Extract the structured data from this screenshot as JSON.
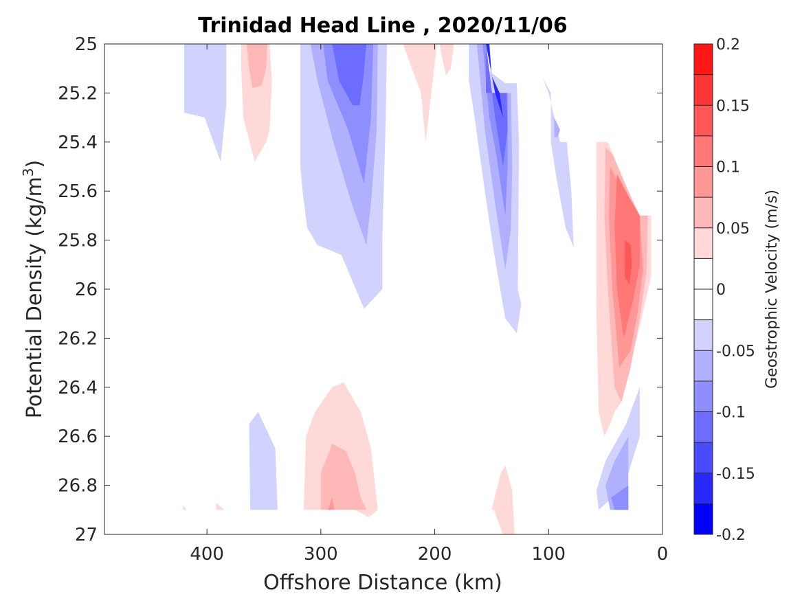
{
  "chart_data": {
    "type": "contour",
    "title": "Trinidad Head Line , 2020/11/06",
    "xlabel": "Offshore Distance (km)",
    "ylabel_main": "Potential Density (kg/m",
    "ylabel_sup": "3",
    "ylabel_close": ")",
    "colorbar_label": "Geostrophic Velocity (m/s)",
    "xlim": [
      490,
      0
    ],
    "x_reversed": true,
    "ylim": [
      25,
      27
    ],
    "y_reversed": true,
    "x_ticks": [
      400,
      300,
      200,
      100,
      0
    ],
    "x_tick_labels": [
      "400",
      "300",
      "200",
      "100",
      "0"
    ],
    "y_ticks": [
      25,
      25.2,
      25.4,
      25.6,
      25.8,
      26,
      26.2,
      26.4,
      26.6,
      26.8,
      27
    ],
    "y_tick_labels": [
      "25",
      "25.2",
      "25.4",
      "25.6",
      "25.8",
      "26",
      "26.2",
      "26.4",
      "26.6",
      "26.8",
      "27"
    ],
    "colorbar": {
      "range": [
        -0.2,
        0.2
      ],
      "ticks": [
        0.2,
        0.15,
        0.1,
        0.05,
        0,
        -0.05,
        -0.1,
        -0.15,
        -0.2
      ],
      "tick_labels": [
        "0.2",
        "0.15",
        "0.1",
        "0.05",
        "0",
        "-0.05",
        "-0.1",
        "-0.15",
        "-0.2"
      ],
      "levels": [
        -0.2,
        -0.175,
        -0.15,
        -0.125,
        -0.1,
        -0.075,
        -0.05,
        -0.025,
        0,
        0.025,
        0.05,
        0.075,
        0.1,
        0.125,
        0.15,
        0.175,
        0.2
      ],
      "colors": [
        "#0000ff",
        "#2828ff",
        "#4a4aff",
        "#6c6cff",
        "#8e8eff",
        "#b0b0ff",
        "#d2d2ff",
        "#ffffff",
        "#ffffff",
        "#ffd8d8",
        "#ffb8b8",
        "#ff9797",
        "#ff7777",
        "#ff5757",
        "#ff3636",
        "#ff1616"
      ]
    },
    "regions": [
      {
        "name": "neg-band-420-outer",
        "color": "#d2d2ff",
        "points": [
          [
            420,
            25
          ],
          [
            383,
            25
          ],
          [
            383,
            25.25
          ],
          [
            388,
            25.48
          ],
          [
            402,
            25.3
          ],
          [
            420,
            25.28
          ]
        ]
      },
      {
        "name": "pos-band-355-outer",
        "color": "#ffd8d8",
        "points": [
          [
            370,
            25
          ],
          [
            345,
            25
          ],
          [
            343,
            25.15
          ],
          [
            345,
            25.35
          ],
          [
            348,
            25.4
          ],
          [
            358,
            25.48
          ],
          [
            368,
            25.3
          ],
          [
            370,
            25.1
          ]
        ]
      },
      {
        "name": "pos-band-355-inner",
        "color": "#ffb8b8",
        "points": [
          [
            365,
            25
          ],
          [
            347,
            25
          ],
          [
            348,
            25.1
          ],
          [
            352,
            25.17
          ],
          [
            360,
            25.18
          ],
          [
            363,
            25.1
          ]
        ]
      },
      {
        "name": "neg-band-300-1",
        "color": "#d2d2ff",
        "points": [
          [
            318,
            25
          ],
          [
            242,
            25
          ],
          [
            243,
            25.3
          ],
          [
            246,
            25.8
          ],
          [
            246,
            26.0
          ],
          [
            252,
            26.03
          ],
          [
            262,
            26.08
          ],
          [
            282,
            25.86
          ],
          [
            303,
            25.82
          ],
          [
            312,
            25.75
          ],
          [
            316,
            25.6
          ],
          [
            318,
            25.5
          ]
        ]
      },
      {
        "name": "neg-band-300-2",
        "color": "#b0b0ff",
        "points": [
          [
            309,
            25
          ],
          [
            250,
            25
          ],
          [
            251,
            25.35
          ],
          [
            256,
            25.65
          ],
          [
            260,
            25.82
          ],
          [
            273,
            25.65
          ],
          [
            289,
            25.4
          ],
          [
            303,
            25.15
          ]
        ]
      },
      {
        "name": "neg-band-300-3",
        "color": "#8e8eff",
        "points": [
          [
            298,
            25
          ],
          [
            254,
            25
          ],
          [
            256,
            25.3
          ],
          [
            262,
            25.57
          ],
          [
            276,
            25.35
          ],
          [
            294,
            25.15
          ]
        ]
      },
      {
        "name": "neg-band-300-4",
        "color": "#6c6cff",
        "points": [
          [
            290,
            25
          ],
          [
            260,
            25
          ],
          [
            263,
            25.15
          ],
          [
            266,
            25.25
          ],
          [
            272,
            25.25
          ],
          [
            284,
            25.15
          ]
        ]
      },
      {
        "name": "pos-band-210",
        "color": "#ffd8d8",
        "points": [
          [
            228,
            25
          ],
          [
            198,
            25
          ],
          [
            208,
            25.4
          ],
          [
            212,
            25.2
          ]
        ]
      },
      {
        "name": "pos-band-190",
        "color": "#ffd8d8",
        "points": [
          [
            196,
            25
          ],
          [
            183,
            25
          ],
          [
            186,
            25.1
          ],
          [
            190,
            25.13
          ]
        ]
      },
      {
        "name": "neg-band-150-1",
        "color": "#d2d2ff",
        "points": [
          [
            170,
            25
          ],
          [
            155,
            25
          ],
          [
            155,
            25.1
          ],
          [
            138,
            25.16
          ],
          [
            128,
            25.16
          ],
          [
            126,
            25.4
          ],
          [
            127,
            26.0
          ],
          [
            124,
            26.06
          ],
          [
            128,
            26.18
          ],
          [
            138,
            26.12
          ],
          [
            148,
            25.85
          ],
          [
            156,
            25.6
          ],
          [
            165,
            25.3
          ],
          [
            170,
            25.15
          ]
        ]
      },
      {
        "name": "neg-band-150-2",
        "color": "#b0b0ff",
        "points": [
          [
            163,
            25
          ],
          [
            155,
            25
          ],
          [
            155,
            25.2
          ],
          [
            133,
            25.2
          ],
          [
            132,
            25.5
          ],
          [
            133,
            25.75
          ],
          [
            138,
            25.92
          ],
          [
            147,
            25.65
          ],
          [
            156,
            25.35
          ],
          [
            160,
            25.15
          ]
        ]
      },
      {
        "name": "neg-band-150-3",
        "color": "#8e8eff",
        "points": [
          [
            158,
            25
          ],
          [
            155,
            25
          ],
          [
            155,
            25.2
          ],
          [
            136,
            25.2
          ],
          [
            136,
            25.5
          ],
          [
            138,
            25.7
          ],
          [
            146,
            25.45
          ],
          [
            152,
            25.3
          ]
        ]
      },
      {
        "name": "neg-band-150-4",
        "color": "#6c6cff",
        "points": [
          [
            155,
            25
          ],
          [
            155,
            25.2
          ],
          [
            137,
            25.2
          ],
          [
            136,
            25.35
          ],
          [
            140,
            25.5
          ],
          [
            147,
            25.3
          ]
        ]
      },
      {
        "name": "neg-band-150-5",
        "color": "#2828ff",
        "points": [
          [
            155,
            25
          ],
          [
            152,
            25
          ],
          [
            150,
            25.13
          ],
          [
            143,
            25.2
          ],
          [
            140,
            25.3
          ],
          [
            147,
            25.2
          ]
        ]
      },
      {
        "name": "neg-band-100",
        "color": "#d2d2ff",
        "points": [
          [
            105,
            25.14
          ],
          [
            98,
            25.2
          ],
          [
            98,
            25.4
          ],
          [
            93,
            25.55
          ],
          [
            85,
            25.75
          ],
          [
            78,
            25.83
          ],
          [
            80,
            25.6
          ],
          [
            84,
            25.4
          ],
          [
            90,
            25.4
          ],
          [
            96,
            25.28
          ],
          [
            100,
            25.2
          ]
        ]
      },
      {
        "name": "neg-band-100-inner",
        "color": "#b0b0ff",
        "points": [
          [
            95,
            25.3
          ],
          [
            90,
            25.35
          ],
          [
            92,
            25.38
          ],
          [
            95,
            25.38
          ]
        ]
      },
      {
        "name": "pos-band-40-1",
        "color": "#ffd8d8",
        "points": [
          [
            58,
            25.4
          ],
          [
            48,
            25.4
          ],
          [
            30,
            25.6
          ],
          [
            20,
            25.7
          ],
          [
            10,
            25.7
          ],
          [
            10,
            25.95
          ],
          [
            20,
            26.15
          ],
          [
            28,
            26.3
          ],
          [
            36,
            26.46
          ],
          [
            42,
            26.5
          ],
          [
            46,
            26.55
          ],
          [
            51,
            26.6
          ],
          [
            56,
            26.5
          ],
          [
            58,
            26.1
          ],
          [
            58,
            25.8
          ]
        ]
      },
      {
        "name": "pos-band-40-2",
        "color": "#ffb8b8",
        "points": [
          [
            50,
            25.42
          ],
          [
            44,
            25.45
          ],
          [
            30,
            25.6
          ],
          [
            20,
            25.7
          ],
          [
            13,
            25.7
          ],
          [
            14,
            25.93
          ],
          [
            20,
            26.12
          ],
          [
            28,
            26.32
          ],
          [
            36,
            26.46
          ],
          [
            42,
            26.4
          ],
          [
            48,
            26.0
          ],
          [
            51,
            25.7
          ]
        ]
      },
      {
        "name": "pos-band-40-3",
        "color": "#ff9797",
        "points": [
          [
            46,
            25.5
          ],
          [
            30,
            25.65
          ],
          [
            20,
            25.7
          ],
          [
            17,
            25.92
          ],
          [
            22,
            26.1
          ],
          [
            28,
            26.25
          ],
          [
            38,
            26.32
          ],
          [
            44,
            26.0
          ],
          [
            47,
            25.7
          ]
        ]
      },
      {
        "name": "pos-band-40-4",
        "color": "#ff7777",
        "points": [
          [
            40,
            25.53
          ],
          [
            30,
            25.62
          ],
          [
            20,
            25.7
          ],
          [
            20,
            25.9
          ],
          [
            26,
            26.05
          ],
          [
            34,
            26.2
          ],
          [
            40,
            26.0
          ],
          [
            42,
            25.75
          ]
        ]
      },
      {
        "name": "pos-band-40-5",
        "color": "#ff5757",
        "points": [
          [
            33,
            25.8
          ],
          [
            28,
            25.82
          ],
          [
            27,
            25.9
          ],
          [
            29,
            25.98
          ],
          [
            33,
            25.95
          ]
        ]
      },
      {
        "name": "neg-band-30-1",
        "color": "#d2d2ff",
        "points": [
          [
            20,
            26.4
          ],
          [
            20,
            26.6
          ],
          [
            30,
            26.75
          ],
          [
            44,
            26.85
          ],
          [
            56,
            26.9
          ],
          [
            58,
            26.82
          ],
          [
            50,
            26.7
          ],
          [
            32,
            26.55
          ]
        ]
      },
      {
        "name": "neg-band-30-2",
        "color": "#b0b0ff",
        "points": [
          [
            30,
            26.6
          ],
          [
            30,
            26.9
          ],
          [
            46,
            26.9
          ],
          [
            50,
            26.8
          ],
          [
            42,
            26.7
          ]
        ]
      },
      {
        "name": "neg-band-30-3",
        "color": "#8e8eff",
        "points": [
          [
            30,
            26.8
          ],
          [
            30,
            26.9
          ],
          [
            42,
            26.9
          ],
          [
            45,
            26.85
          ]
        ]
      },
      {
        "name": "neg-band-360",
        "color": "#d2d2ff",
        "points": [
          [
            363,
            26.55
          ],
          [
            355,
            26.5
          ],
          [
            340,
            26.65
          ],
          [
            338,
            26.9
          ],
          [
            362,
            26.9
          ]
        ]
      },
      {
        "name": "pos-band-280-1",
        "color": "#ffd8d8",
        "points": [
          [
            305,
            26.5
          ],
          [
            290,
            26.4
          ],
          [
            280,
            26.38
          ],
          [
            265,
            26.5
          ],
          [
            256,
            26.65
          ],
          [
            250,
            26.9
          ],
          [
            258,
            26.93
          ],
          [
            270,
            26.9
          ],
          [
            300,
            26.9
          ],
          [
            315,
            26.9
          ],
          [
            313,
            26.6
          ]
        ]
      },
      {
        "name": "pos-band-280-2",
        "color": "#ffb8b8",
        "points": [
          [
            300,
            26.75
          ],
          [
            290,
            26.63
          ],
          [
            278,
            26.66
          ],
          [
            270,
            26.75
          ],
          [
            265,
            26.85
          ],
          [
            260,
            26.9
          ],
          [
            300,
            26.9
          ]
        ]
      },
      {
        "name": "pos-band-280-3",
        "color": "#ff9797",
        "points": [
          [
            294,
            26.9
          ],
          [
            290,
            26.85
          ],
          [
            288,
            26.9
          ]
        ]
      },
      {
        "name": "pos-band-420",
        "color": "#ffd8d8",
        "points": [
          [
            421,
            26.88
          ],
          [
            418,
            26.9
          ],
          [
            421,
            26.9
          ]
        ]
      },
      {
        "name": "pos-band-390",
        "color": "#ffd8d8",
        "points": [
          [
            392,
            26.87
          ],
          [
            385,
            26.9
          ],
          [
            392,
            26.9
          ]
        ]
      },
      {
        "name": "pos-band-140",
        "color": "#ffd8d8",
        "points": [
          [
            150,
            26.9
          ],
          [
            142,
            26.75
          ],
          [
            138,
            26.72
          ],
          [
            132,
            26.82
          ],
          [
            130,
            27
          ],
          [
            140,
            27
          ],
          [
            148,
            26.9
          ]
        ]
      }
    ]
  }
}
